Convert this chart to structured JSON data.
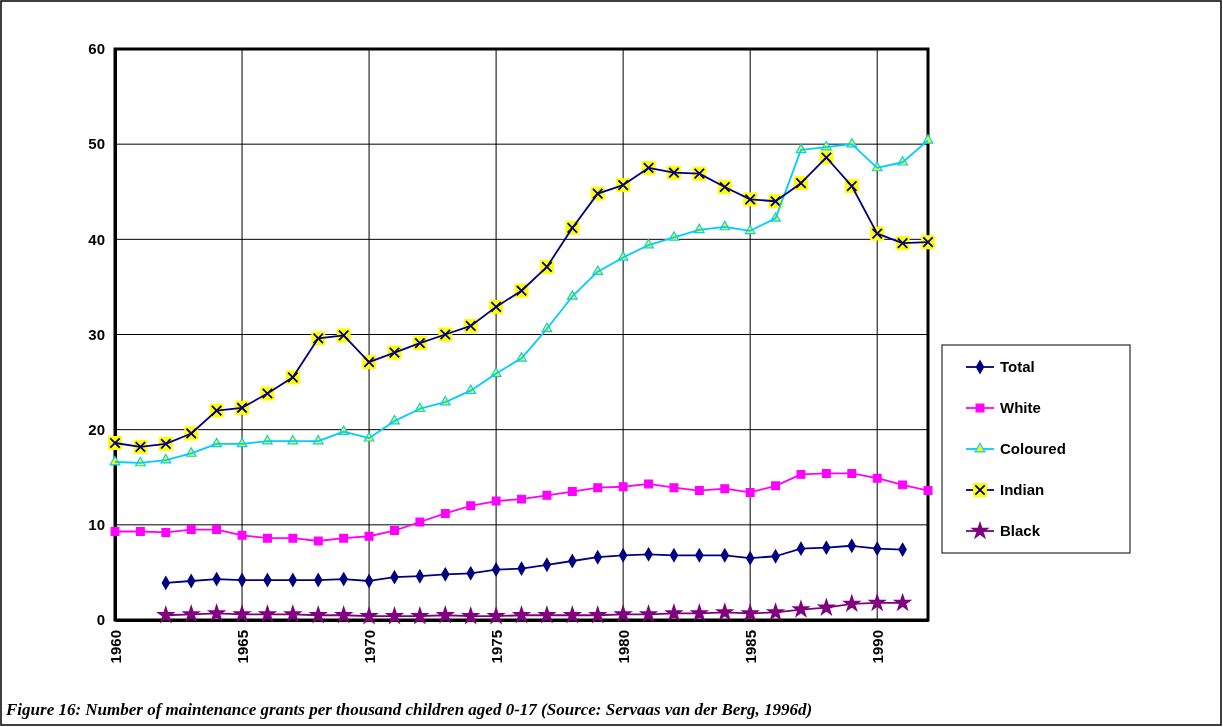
{
  "chart_data": {
    "type": "line",
    "title": "Figure 16: Number of maintenance grants per thousand children aged 0-17 (Source: Servaas van der Berg, 1996d)",
    "x": [
      1960,
      1961,
      1962,
      1963,
      1964,
      1965,
      1966,
      1967,
      1968,
      1969,
      1970,
      1971,
      1972,
      1973,
      1974,
      1975,
      1976,
      1977,
      1978,
      1979,
      1980,
      1981,
      1982,
      1983,
      1984,
      1985,
      1986,
      1987,
      1988,
      1989,
      1990,
      1991,
      1992
    ],
    "xlim": [
      1960,
      1992
    ],
    "xticks": [
      1960,
      1965,
      1970,
      1975,
      1980,
      1985,
      1990
    ],
    "ylim": [
      0,
      60
    ],
    "yticks": [
      0,
      10,
      20,
      30,
      40,
      50,
      60
    ],
    "grid": true,
    "legend": "right",
    "series": [
      {
        "name": "Total",
        "color": "#000080",
        "marker": "diamond",
        "values": [
          null,
          null,
          3.9,
          4.1,
          4.3,
          4.2,
          4.2,
          4.2,
          4.2,
          4.3,
          4.1,
          4.5,
          4.6,
          4.8,
          4.9,
          5.3,
          5.4,
          5.8,
          6.2,
          6.6,
          6.8,
          6.9,
          6.8,
          6.8,
          6.8,
          6.5,
          6.7,
          7.5,
          7.6,
          7.8,
          7.5,
          7.4,
          null
        ]
      },
      {
        "name": "White",
        "color": "#ff00ff",
        "marker": "square",
        "values": [
          9.3,
          9.3,
          9.2,
          9.5,
          9.5,
          8.9,
          8.6,
          8.6,
          8.3,
          8.6,
          8.8,
          9.4,
          10.3,
          11.2,
          12.0,
          12.5,
          12.7,
          13.1,
          13.5,
          13.9,
          14.0,
          14.3,
          13.9,
          13.6,
          13.8,
          13.4,
          14.1,
          15.3,
          15.4,
          15.4,
          14.9,
          14.2,
          13.6
        ]
      },
      {
        "name": "Coloured",
        "color": "#00ccff",
        "marker": "triangle",
        "values": [
          16.6,
          16.5,
          16.8,
          17.5,
          18.5,
          18.5,
          18.8,
          18.8,
          18.8,
          19.8,
          19.1,
          20.9,
          22.2,
          22.9,
          24.1,
          25.9,
          27.5,
          30.6,
          34.0,
          36.6,
          38.1,
          39.4,
          40.2,
          41.0,
          41.3,
          40.9,
          42.2,
          49.4,
          49.7,
          50.0,
          47.5,
          48.1,
          50.4
        ]
      },
      {
        "name": "Indian",
        "color": "#000080",
        "marker": "cross",
        "values": [
          18.6,
          18.2,
          18.5,
          19.6,
          22.0,
          22.3,
          23.8,
          25.5,
          29.6,
          29.9,
          27.1,
          28.1,
          29.1,
          30.0,
          30.9,
          32.9,
          34.6,
          37.1,
          41.2,
          44.8,
          45.7,
          47.5,
          47.0,
          46.9,
          45.5,
          44.2,
          44.0,
          45.9,
          48.6,
          45.6,
          40.6,
          39.6,
          39.7
        ]
      },
      {
        "name": "Black",
        "color": "#800080",
        "marker": "star",
        "values": [
          null,
          null,
          0.5,
          0.6,
          0.7,
          0.6,
          0.6,
          0.6,
          0.5,
          0.5,
          0.4,
          0.4,
          0.4,
          0.5,
          0.4,
          0.4,
          0.5,
          0.5,
          0.5,
          0.5,
          0.6,
          0.6,
          0.7,
          0.7,
          0.8,
          0.7,
          0.8,
          1.1,
          1.3,
          1.7,
          1.8,
          1.8,
          null
        ]
      }
    ]
  }
}
